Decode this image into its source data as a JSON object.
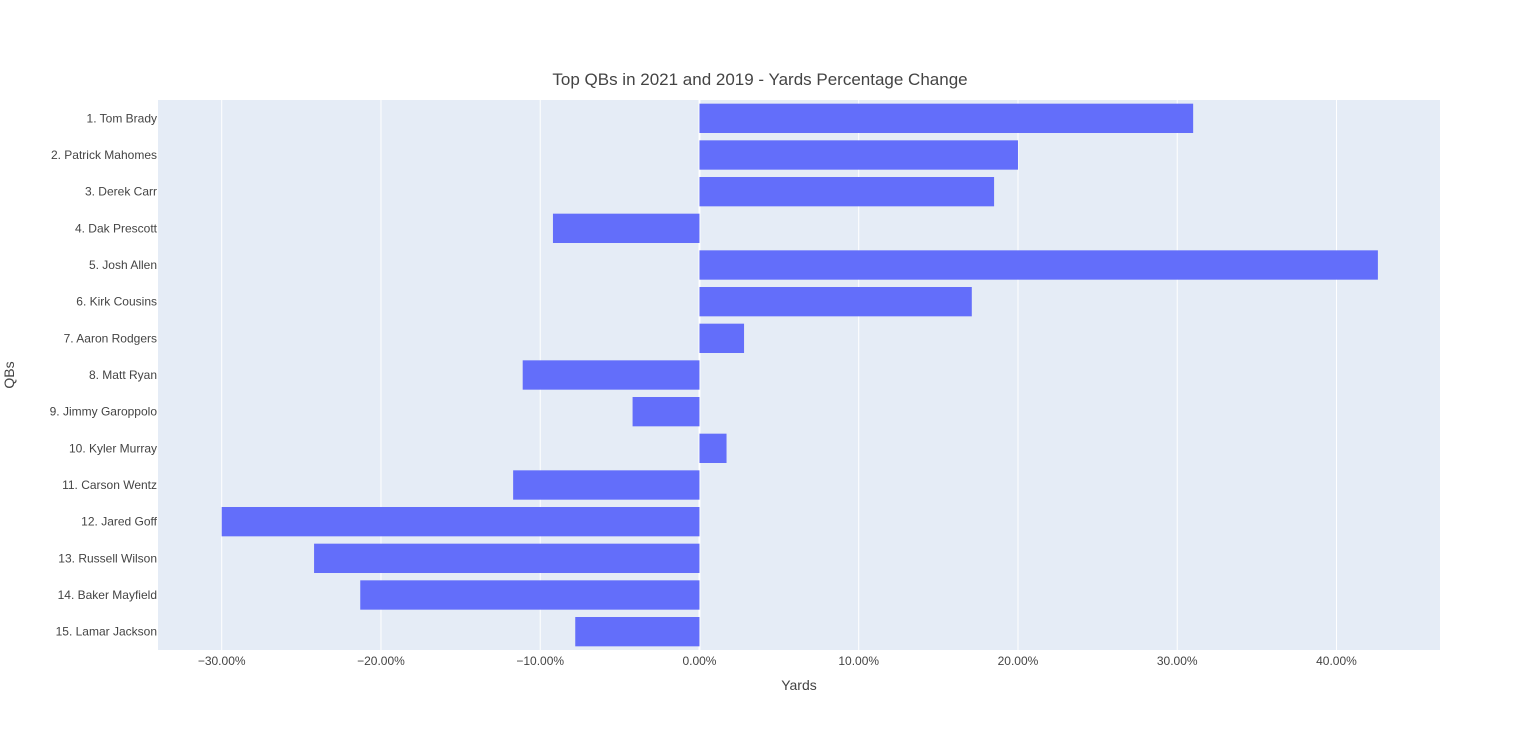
{
  "chart_data": {
    "type": "bar",
    "orientation": "horizontal",
    "title": "Top QBs in 2021 and 2019 - Yards Percentage Change",
    "xlabel": "Yards",
    "ylabel": "QBs",
    "xlim": [
      -34,
      46.5
    ],
    "x_ticks": [
      {
        "value": -30,
        "label": "−30.00%"
      },
      {
        "value": -20,
        "label": "−20.00%"
      },
      {
        "value": -10,
        "label": "−10.00%"
      },
      {
        "value": 0,
        "label": "0.00%"
      },
      {
        "value": 10,
        "label": "10.00%"
      },
      {
        "value": 20,
        "label": "20.00%"
      },
      {
        "value": 30,
        "label": "30.00%"
      },
      {
        "value": 40,
        "label": "40.00%"
      }
    ],
    "categories": [
      "1. Tom Brady",
      "2. Patrick Mahomes",
      "3. Derek Carr",
      "4. Dak Prescott",
      "5. Josh Allen",
      "6. Kirk Cousins",
      "7. Aaron Rodgers",
      "8. Matt Ryan",
      "9. Jimmy Garoppolo",
      "10. Kyler Murray",
      "11. Carson Wentz",
      "12. Jared Goff",
      "13. Russell Wilson",
      "14. Baker Mayfield",
      "15. Lamar Jackson"
    ],
    "values": [
      31.0,
      20.0,
      18.5,
      -9.2,
      42.6,
      17.1,
      2.8,
      -11.1,
      -4.2,
      1.7,
      -11.7,
      -30.0,
      -24.2,
      -21.3,
      -7.8
    ],
    "colors": {
      "bar": "#636efa",
      "plot_bg": "#e5ecf6",
      "grid": "#ffffff",
      "text": "#444444"
    },
    "grid": true,
    "legend": "none"
  }
}
